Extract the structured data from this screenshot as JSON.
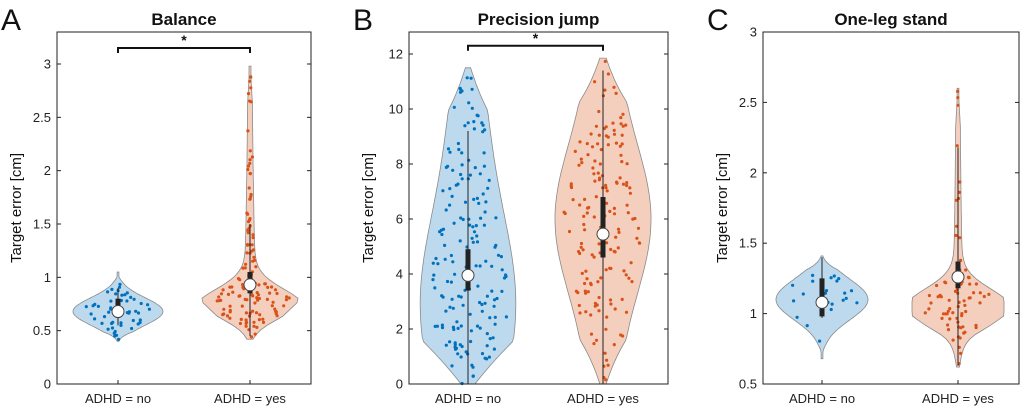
{
  "figure": {
    "group_colors": {
      "no": "#0072bd",
      "yes": "#d95319"
    },
    "violin_fill": {
      "no": "#bcd9ee",
      "yes": "#f5cfbe"
    }
  },
  "chart_data": [
    {
      "type": "violin",
      "panel_letter": "A",
      "title": "Balance",
      "xlabel": "",
      "ylabel": "Target error [cm]",
      "categories": [
        "ADHD = no",
        "ADHD = yes"
      ],
      "ylim": [
        0,
        3.3
      ],
      "yticks": [
        "0",
        "0.5",
        "1",
        "1.5",
        "2",
        "2.5",
        "3"
      ],
      "grid": false,
      "significance": {
        "label": "*",
        "y": 3.15
      },
      "groups": [
        {
          "name": "ADHD = no",
          "median": 0.68,
          "q1": 0.62,
          "q3": 0.8,
          "whisker_low": 0.55,
          "whisker_high": 0.9,
          "min": 0.4,
          "max": 1.05,
          "peak": 0.68,
          "shape": "unimodal",
          "n_points": 50
        },
        {
          "name": "ADHD = yes",
          "median": 0.93,
          "q1": 0.85,
          "q3": 1.05,
          "whisker_low": 0.45,
          "whisker_high": 1.5,
          "min": 0.42,
          "max": 2.98,
          "peak": 0.72,
          "shape": "long-tail",
          "n_points": 130
        }
      ]
    },
    {
      "type": "violin",
      "panel_letter": "B",
      "title": "Precision jump",
      "xlabel": "",
      "ylabel": "Target error [cm]",
      "categories": [
        "ADHD = no",
        "ADHD = yes"
      ],
      "ylim": [
        0,
        12.8
      ],
      "yticks": [
        "0",
        "2",
        "4",
        "6",
        "8",
        "10",
        "12"
      ],
      "grid": false,
      "significance": {
        "label": "*",
        "y": 12.3
      },
      "groups": [
        {
          "name": "ADHD = no",
          "median": 3.95,
          "q1": 3.4,
          "q3": 4.9,
          "whisker_low": 0,
          "whisker_high": 9.2,
          "min": 0,
          "max": 11.5,
          "peak": 3.0,
          "shape": "wide-low",
          "n_points": 170
        },
        {
          "name": "ADHD = yes",
          "median": 5.45,
          "q1": 4.6,
          "q3": 6.8,
          "whisker_low": 0,
          "whisker_high": 11.4,
          "min": 0,
          "max": 11.85,
          "peak": 6.0,
          "shape": "wide-high",
          "n_points": 160
        }
      ]
    },
    {
      "type": "violin",
      "panel_letter": "C",
      "title": "One-leg stand",
      "xlabel": "",
      "ylabel": "Target error [cm]",
      "categories": [
        "ADHD = no",
        "ADHD = yes"
      ],
      "ylim": [
        0.5,
        3
      ],
      "yticks": [
        "0.5",
        "1",
        "1.5",
        "2",
        "2.5",
        "3"
      ],
      "grid": false,
      "significance": null,
      "groups": [
        {
          "name": "ADHD = no",
          "median": 1.08,
          "q1": 0.98,
          "q3": 1.25,
          "whisker_low": 0.97,
          "whisker_high": 1.4,
          "min": 0.68,
          "max": 1.41,
          "peak": 1.1,
          "shape": "unimodal",
          "n_points": 22
        },
        {
          "name": "ADHD = yes",
          "median": 1.26,
          "q1": 1.18,
          "q3": 1.37,
          "whisker_low": 0.63,
          "whisker_high": 2.18,
          "min": 0.62,
          "max": 2.6,
          "peak": 1.05,
          "shape": "long-tail",
          "n_points": 75
        }
      ]
    }
  ]
}
